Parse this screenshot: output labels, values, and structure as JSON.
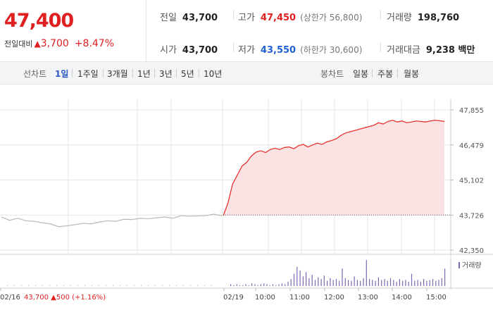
{
  "quote": {
    "price": "47,400",
    "change_label": "전일대비",
    "change_arrow": "▲",
    "change_amount": "3,700",
    "change_pct": "+8.47%",
    "prev_close_label": "전일",
    "prev_close": "43,700",
    "high_label": "고가",
    "high": "47,450",
    "upper_limit": "(상한가 56,800)",
    "volume_label": "거래량",
    "volume": "198,760",
    "open_label": "시가",
    "open": "43,700",
    "low_label": "저가",
    "low": "43,550",
    "lower_limit": "(하한가 30,600)",
    "amount_label": "거래대금",
    "amount": "9,238 백만"
  },
  "tabs": {
    "line_label": "선차트",
    "line_items": [
      "1일",
      "1주일",
      "3개월",
      "1년",
      "3년",
      "5년",
      "10년"
    ],
    "candle_label": "봉차트",
    "candle_items": [
      "일봉",
      "주봉",
      "월봉"
    ]
  },
  "chart_data": {
    "type": "line",
    "ylim": [
      42350,
      47855
    ],
    "y_ticks": [
      "47,855",
      "46,479",
      "45,102",
      "43,726",
      "42,350"
    ],
    "prev_close_ref": 43726,
    "x_labels": [
      "02/16",
      "02/19",
      "10:00",
      "11:00",
      "12:00",
      "13:00",
      "14:00",
      "15:00"
    ],
    "prev_day_summary": {
      "close": "43,700",
      "change": "500",
      "pct": "(+1.16%)",
      "arrow": "▲"
    },
    "volume_legend": "거래량",
    "series": [
      {
        "values": [
          43650,
          43520,
          43600,
          43500,
          43480,
          43420,
          43380,
          43270,
          43300,
          43350,
          43400,
          43380,
          43450,
          43500,
          43480,
          43560,
          43550,
          43600,
          43580,
          43620,
          43650,
          43600,
          43700,
          43680,
          43690,
          43700,
          43760,
          43700
        ],
        "colors": {
          "line": "#b8b8b8"
        }
      },
      {
        "values": [
          43700,
          44200,
          44950,
          45300,
          45650,
          45800,
          46050,
          46200,
          46250,
          46180,
          46300,
          46350,
          46300,
          46380,
          46400,
          46330,
          46450,
          46500,
          46400,
          46480,
          46550,
          46500,
          46600,
          46650,
          46720,
          46850,
          46950,
          47000,
          47050,
          47100,
          47150,
          47200,
          47250,
          47350,
          47300,
          47400,
          47450,
          47380,
          47420,
          47350,
          47380,
          47420,
          47400,
          47380,
          47420,
          47450,
          47430,
          47400
        ],
        "colors": {
          "line": "#e8332f",
          "fill": "#fbe3e3"
        }
      }
    ],
    "volume": [
      2,
      1,
      2,
      1,
      1,
      2,
      1,
      3,
      2,
      1,
      2,
      3,
      2,
      1,
      2,
      1,
      2,
      3,
      2,
      5,
      8,
      14,
      22,
      18,
      11,
      16,
      9,
      13,
      7,
      10,
      8,
      12,
      6,
      9,
      7,
      8,
      6,
      20,
      9,
      7,
      6,
      11,
      7,
      6,
      9,
      30,
      8,
      7,
      6,
      10,
      7,
      8,
      6,
      9,
      7,
      5,
      8,
      6,
      7,
      5,
      14,
      6,
      7,
      5,
      8,
      6,
      7,
      8,
      6,
      7,
      9,
      20
    ],
    "colors": {
      "volume": "#7d66b5",
      "grid": "#e6e6e6",
      "ref_line": "#555555"
    }
  }
}
